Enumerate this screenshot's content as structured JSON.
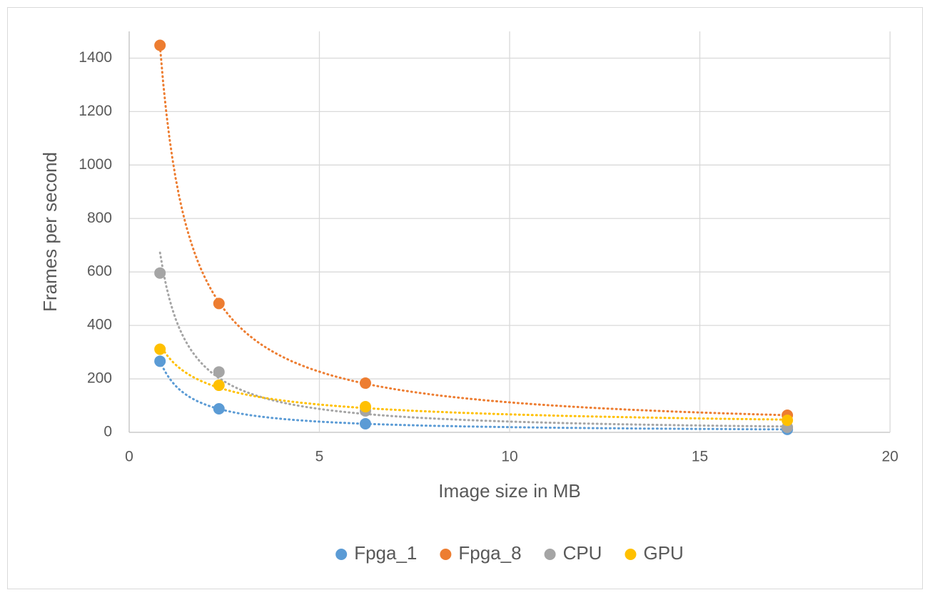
{
  "chart_data": {
    "type": "scatter",
    "x_label": "Image size in MB",
    "y_label": "Frames per second",
    "xlim": [
      0,
      20
    ],
    "xticks": [
      0,
      5,
      10,
      15,
      20
    ],
    "ylim": [
      0,
      1500
    ],
    "yticks": [
      0,
      200,
      400,
      600,
      800,
      1000,
      1200,
      1400
    ],
    "grid": true,
    "legend": "bottom",
    "trendline": "power",
    "series": [
      {
        "name": "Fpga_1",
        "color": "#5b9bd5",
        "x": [
          0.81,
          2.36,
          6.21,
          17.3
        ],
        "values": [
          266,
          88,
          32,
          11
        ]
      },
      {
        "name": "Fpga_8",
        "color": "#ed7d31",
        "x": [
          0.81,
          2.36,
          6.21,
          17.3
        ],
        "values": [
          1448,
          482,
          184,
          64
        ]
      },
      {
        "name": "CPU",
        "color": "#a5a5a5",
        "x": [
          0.81,
          2.36,
          6.21,
          17.3
        ],
        "values": [
          596,
          226,
          80,
          19
        ]
      },
      {
        "name": "GPU",
        "color": "#ffc000",
        "x": [
          0.81,
          2.36,
          6.21,
          17.3
        ],
        "values": [
          311,
          176,
          96,
          45
        ]
      }
    ]
  }
}
